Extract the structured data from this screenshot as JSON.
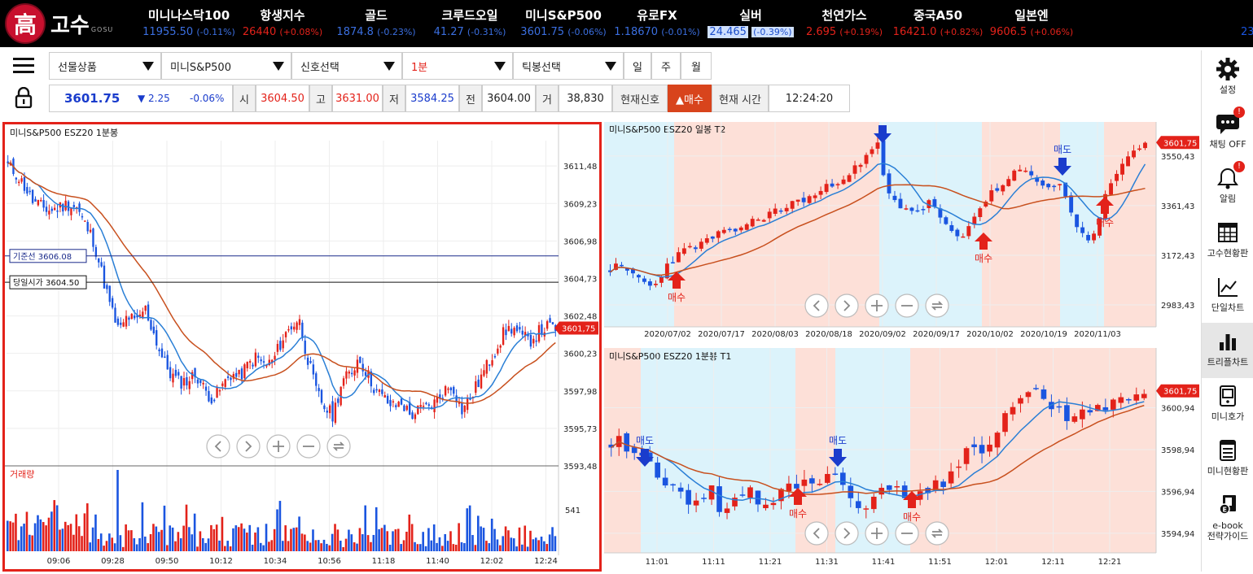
{
  "logo": {
    "badge": "高",
    "text": "고수",
    "sub": "GOSU"
  },
  "tickers": [
    {
      "name": "미니나스닥100",
      "value": "11955.50",
      "change": "(-0.11%)",
      "dir": "down"
    },
    {
      "name": "항생지수",
      "value": "26440",
      "change": "(+0.08%)",
      "dir": "up"
    },
    {
      "name": "골드",
      "value": "1874.8",
      "change": "(-0.23%)",
      "dir": "down"
    },
    {
      "name": "크루드오일",
      "value": "41.27",
      "change": "(-0.31%)",
      "dir": "down"
    },
    {
      "name": "미니S&P500",
      "value": "3601.75",
      "change": "(-0.06%)",
      "dir": "down"
    },
    {
      "name": "유로FX",
      "value": "1.18670",
      "change": "(-0.01%)",
      "dir": "down"
    },
    {
      "name": "실버",
      "value": "24.465",
      "change": "(-0.39%)",
      "dir": "down"
    },
    {
      "name": "천연가스",
      "value": "2.695",
      "change": "(+0.19%)",
      "dir": "up"
    },
    {
      "name": "중국A50",
      "value": "16421.0",
      "change": "(+0.82%)",
      "dir": "up"
    },
    {
      "name": "일본엔",
      "value": "9606.5",
      "change": "(+0.06%)",
      "dir": "up"
    }
  ],
  "ticker_overflow": "23",
  "toolbar": {
    "product_select": "선물상품",
    "symbol_select": "미니S&P500",
    "signal_select": "신호선택",
    "interval_select": "1분",
    "tick_select": "틱봉선택",
    "day_btn": "일",
    "week_btn": "주",
    "month_btn": "월"
  },
  "quote": {
    "price": "3601.75",
    "change": "▼ 2.25",
    "pct": "-0.06%",
    "open_label": "시",
    "open": "3604.50",
    "high_label": "고",
    "high": "3631.00",
    "low_label": "저",
    "low": "3584.25",
    "prev_label": "전",
    "prev": "3604.00",
    "vol_label": "거",
    "volume": "38,830",
    "signal_label": "현재신호",
    "signal": "▲매수",
    "time_label": "현재 시간",
    "time": "12:24:20"
  },
  "sidebar": [
    {
      "label": "설정",
      "icon": "gear-icon"
    },
    {
      "label": "채팅 OFF",
      "icon": "chat-icon",
      "badge": "!"
    },
    {
      "label": "알림",
      "icon": "bell-icon",
      "badge": "!"
    },
    {
      "label": "고수현황판",
      "icon": "table-icon"
    },
    {
      "label": "단일차트",
      "icon": "line-chart-icon"
    },
    {
      "label": "트리플차트",
      "icon": "bar-chart-icon"
    },
    {
      "label": "미니호가",
      "icon": "orderbook-icon"
    },
    {
      "label": "미니현황판",
      "icon": "list-icon"
    },
    {
      "label": "e-book\n전략가이드",
      "icon": "ebook-icon"
    }
  ],
  "colors": {
    "up": "#e3221a",
    "down": "#1a55e0",
    "ma_fast": "#2a7fd6",
    "ma_slow": "#c8501e",
    "buy_zone": "#fde0d8",
    "sell_zone": "#dcf3fb"
  },
  "chart_data": [
    {
      "type": "candlestick",
      "title": "미니S&P500  ESZ20  1분봉",
      "y_ticks": [
        "3611,48",
        "3609,23",
        "3606,98",
        "3604,73",
        "3602,48",
        "3600,23",
        "3597,98",
        "3595,73",
        "3593,48"
      ],
      "x_ticks": [
        "09:06",
        "09:28",
        "09:50",
        "10:12",
        "10:34",
        "10:56",
        "11:18",
        "11:40",
        "12:02",
        "12:24"
      ],
      "ylim": [
        3593.48,
        3613.0
      ],
      "current_price": "3601,75",
      "ref_lines": [
        {
          "label": "기준선 3606.08",
          "value": 3606.08
        },
        {
          "label": "당일시가 3604.50",
          "value": 3604.5
        }
      ],
      "volume_label": "거래량",
      "volume_tick": "541",
      "close_path": [
        3611.5,
        3611,
        3610.2,
        3609.3,
        3609,
        3608.8,
        3609,
        3609.2,
        3609,
        3608,
        3607,
        3605,
        3603,
        3601.5,
        3602.5,
        3602,
        3603,
        3601.5,
        3600,
        3599,
        3598.5,
        3598.6,
        3599,
        3598,
        3597.5,
        3598.2,
        3599,
        3598.8,
        3599.5,
        3600,
        3599.5,
        3599.8,
        3601,
        3601.8,
        3602.3,
        3600,
        3598,
        3597,
        3596.5,
        3598.5,
        3599,
        3600,
        3599,
        3598,
        3597.5,
        3597,
        3597.3,
        3596.5,
        3596.8,
        3597,
        3597.3,
        3598,
        3598.3,
        3596.8,
        3597.5,
        3598.5,
        3599.5,
        3600.5,
        3601.5,
        3601.8,
        3601.2,
        3601,
        3601.5,
        3601.8,
        3601.75
      ]
    },
    {
      "type": "candlestick",
      "title": "미니S&P500  ESZ20  일봉  T2",
      "y_ticks": [
        "3550,43",
        "3361,43",
        "3172,43",
        "2983,43"
      ],
      "x_ticks": [
        "2020/07/02",
        "2020/07/17",
        "2020/08/03",
        "2020/08/18",
        "2020/09/02",
        "2020/09/17",
        "2020/10/02",
        "2020/10/19",
        "2020/11/03"
      ],
      "ylim": [
        2900,
        3680
      ],
      "current_price": "3601,75",
      "signals": [
        {
          "label": "매수",
          "kind": "buy",
          "x_index": 2
        },
        {
          "label": "매수",
          "kind": "buy",
          "x_index": 7
        },
        {
          "label": "매도",
          "kind": "sell",
          "x_index": 9
        },
        {
          "label": "매수",
          "kind": "buy",
          "x_index": 10
        }
      ],
      "close_path": [
        3120,
        3130,
        3110,
        3100,
        3080,
        3050,
        3070,
        3130,
        3160,
        3180,
        3200,
        3210,
        3220,
        3240,
        3260,
        3250,
        3270,
        3290,
        3300,
        3310,
        3330,
        3340,
        3350,
        3370,
        3380,
        3390,
        3400,
        3420,
        3440,
        3460,
        3480,
        3500,
        3520,
        3560,
        3600,
        3420,
        3380,
        3360,
        3350,
        3340,
        3360,
        3380,
        3310,
        3270,
        3230,
        3250,
        3300,
        3360,
        3400,
        3410,
        3440,
        3470,
        3500,
        3480,
        3460,
        3450,
        3430,
        3440,
        3400,
        3300,
        3250,
        3230,
        3300,
        3400,
        3460,
        3520,
        3560,
        3580,
        3600
      ]
    },
    {
      "type": "candlestick",
      "title": "미니S&P500  ESZ20  1분봉  T1",
      "y_ticks": [
        "3600,94",
        "3598,94",
        "3596,94",
        "3594,94"
      ],
      "x_ticks": [
        "11:01",
        "11:11",
        "11:21",
        "11:31",
        "11:41",
        "11:51",
        "12:01",
        "12:11",
        "12:21"
      ],
      "ylim": [
        3594.0,
        3603.8
      ],
      "current_price": "3601,75",
      "signals": [
        {
          "label": "매도",
          "kind": "sell",
          "x_index": 1
        },
        {
          "label": "매수",
          "kind": "buy",
          "x_index": 3
        },
        {
          "label": "매도",
          "kind": "sell",
          "x_index": 4
        },
        {
          "label": "매수",
          "kind": "buy",
          "x_index": 5
        }
      ],
      "close_path": [
        3598.8,
        3599.4,
        3598.8,
        3598.6,
        3598.2,
        3597.7,
        3597,
        3596.7,
        3596.5,
        3596.8,
        3597,
        3595.8,
        3596.3,
        3596.9,
        3597.2,
        3596,
        3596.5,
        3596.9,
        3597.1,
        3597.3,
        3597.4,
        3597.6,
        3597.8,
        3597.6,
        3596.2,
        3595.8,
        3596.6,
        3597.2,
        3597.4,
        3597,
        3596.4,
        3596.8,
        3597.5,
        3597.3,
        3597.8,
        3598.5,
        3599,
        3598.4,
        3599.6,
        3600.6,
        3601.2,
        3601.4,
        3602,
        3601.4,
        3600.8,
        3600.6,
        3600.4,
        3600.8,
        3601.1,
        3600.9,
        3601.2,
        3601.4,
        3601.6,
        3601.75
      ]
    }
  ]
}
